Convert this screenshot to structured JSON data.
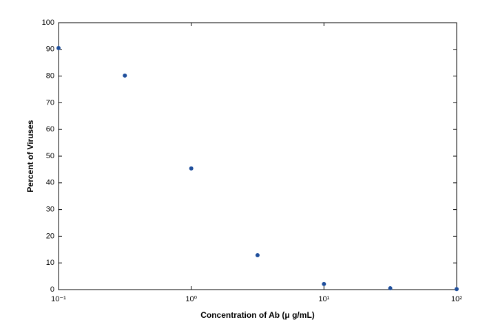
{
  "chart_data": {
    "type": "scatter",
    "xlabel": "Concentration of Ab (μ g/mL)",
    "ylabel": "Percent of Viruses",
    "xscale": "log",
    "xlim": [
      0.1,
      100
    ],
    "ylim": [
      0,
      100
    ],
    "xticks": [
      {
        "value": 0.1,
        "label": "10⁻¹"
      },
      {
        "value": 1,
        "label": "10⁰"
      },
      {
        "value": 10,
        "label": "10¹"
      },
      {
        "value": 100,
        "label": "10²"
      }
    ],
    "yticks": [
      0,
      10,
      20,
      30,
      40,
      50,
      60,
      70,
      80,
      90,
      100
    ],
    "series": [
      {
        "color": "#1f4f9c",
        "x": [
          0.1,
          0.316,
          1,
          3.16,
          10,
          31.6,
          100
        ],
        "values": [
          90.5,
          80.2,
          45.4,
          12.9,
          2.1,
          0.5,
          0.2
        ]
      }
    ]
  }
}
